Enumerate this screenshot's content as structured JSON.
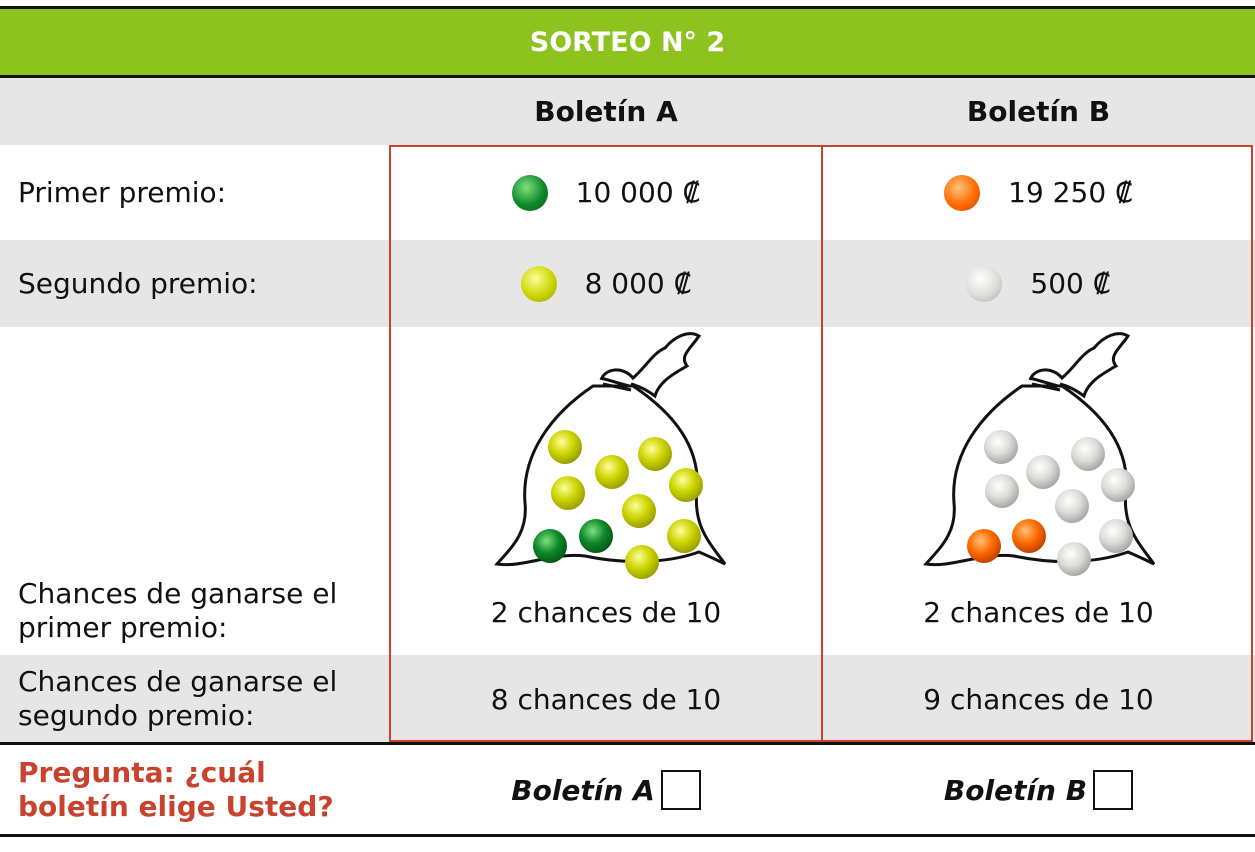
{
  "header": {
    "title": "SORTEO N° 2"
  },
  "table": {
    "columns": [
      "Boletín A",
      "Boletín B"
    ],
    "rows": [
      {
        "label": "Primer premio:",
        "cells": [
          "10 000 ₡",
          "19 250 ₡"
        ]
      },
      {
        "label": "Segundo premio:",
        "cells": [
          "8 000 ₡",
          "500 ₡"
        ]
      },
      {
        "label": "Chances de ganarse el primer premio:",
        "cells": [
          "2 chances de 10",
          "2 chances de 10"
        ]
      },
      {
        "label": "Chances de ganarse el segundo premio:",
        "cells": [
          "8 chances de 10",
          "9 chances de 10"
        ]
      }
    ]
  },
  "question": {
    "text": "Pregunta: ¿cuál boletín elige Usted?",
    "options": [
      "Boletín A",
      "Boletín B"
    ]
  }
}
